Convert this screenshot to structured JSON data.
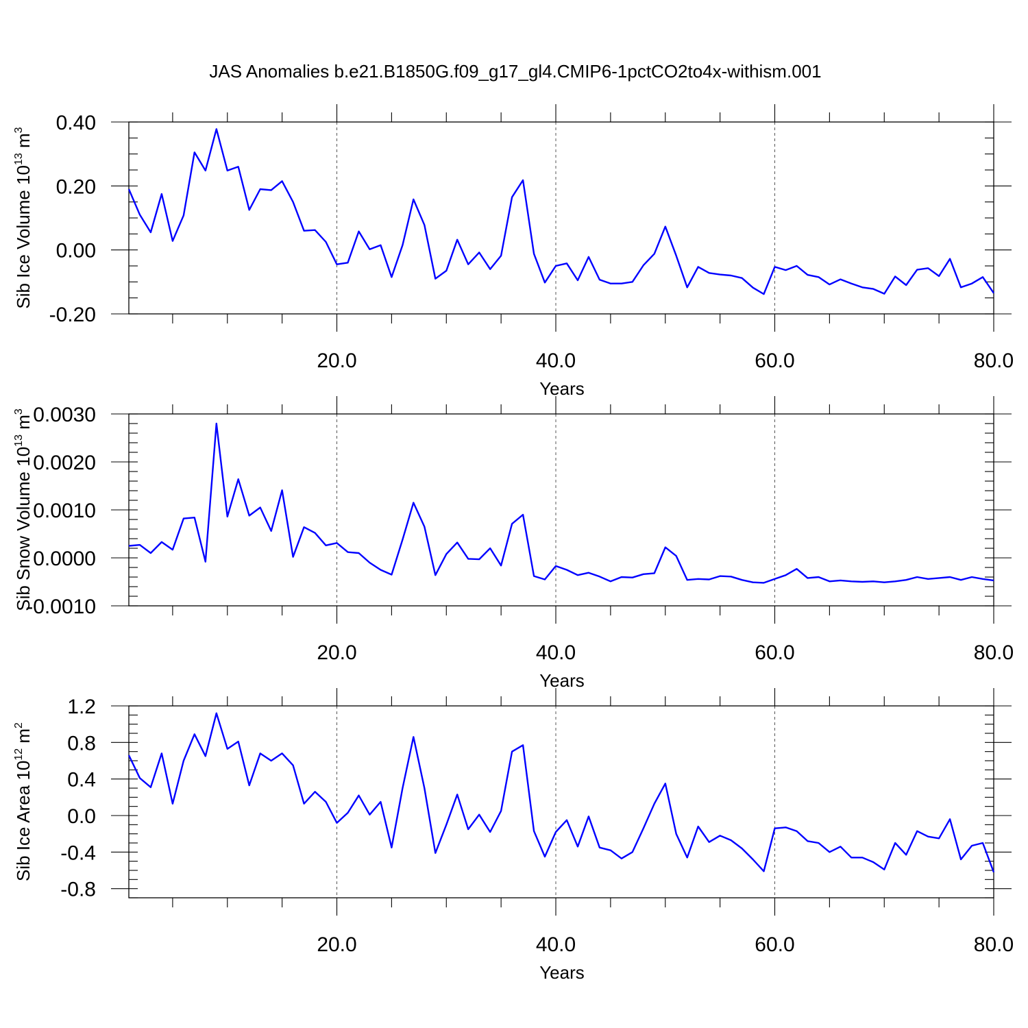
{
  "title": "JAS Anomalies b.e21.B1850G.f09_g17_gl4.CMIP6-1pctCO2to4x-withism.001",
  "colors": {
    "series": "#0000ff",
    "grid": "#555555"
  },
  "chart_data": [
    {
      "type": "line",
      "title": "JAS Anomalies b.e21.B1850G.f09_g17_gl4.CMIP6-1pctCO2to4x-withism.001",
      "xlabel": "Years",
      "ylabel": {
        "text": "Sib Ice Volume 10",
        "sup": "13",
        "unit": " m",
        "unit_sup": "3"
      },
      "xlim": [
        1,
        80
      ],
      "ylim": [
        -0.2,
        0.4
      ],
      "x_ticks": [
        20,
        40,
        60,
        80
      ],
      "x_tick_labels": [
        "20.0",
        "40.0",
        "60.0",
        "80.0"
      ],
      "y_ticks": [
        -0.2,
        0.0,
        0.2,
        0.4
      ],
      "y_tick_labels": [
        "-0.20",
        "0.00",
        "0.20",
        "0.40"
      ],
      "y_minor_step": 0.05,
      "grid": "x dashed at major ticks",
      "series": [
        {
          "color": "#0000ff",
          "x_start": 1,
          "values": [
            0.19,
            0.11,
            0.055,
            0.175,
            0.028,
            0.108,
            0.305,
            0.248,
            0.378,
            0.248,
            0.26,
            0.125,
            0.19,
            0.187,
            0.215,
            0.15,
            0.06,
            0.062,
            0.025,
            -0.045,
            -0.04,
            0.058,
            0.002,
            0.015,
            -0.085,
            0.015,
            0.158,
            0.078,
            -0.09,
            -0.065,
            0.032,
            -0.045,
            -0.008,
            -0.06,
            -0.018,
            0.165,
            0.218,
            -0.012,
            -0.102,
            -0.05,
            -0.042,
            -0.095,
            -0.022,
            -0.093,
            -0.105,
            -0.105,
            -0.1,
            -0.048,
            -0.012,
            0.073,
            -0.018,
            -0.117,
            -0.053,
            -0.072,
            -0.077,
            -0.08,
            -0.088,
            -0.118,
            -0.138,
            -0.053,
            -0.063,
            -0.05,
            -0.078,
            -0.085,
            -0.108,
            -0.092,
            -0.105,
            -0.117,
            -0.122,
            -0.137,
            -0.083,
            -0.11,
            -0.062,
            -0.057,
            -0.082,
            -0.028,
            -0.117,
            -0.105,
            -0.085,
            -0.135
          ]
        }
      ]
    },
    {
      "type": "line",
      "xlabel": "Years",
      "ylabel": {
        "text": "Sib Snow Volume 10",
        "sup": "13",
        "unit": " m",
        "unit_sup": "3"
      },
      "xlim": [
        1,
        80
      ],
      "ylim": [
        -0.001,
        0.003
      ],
      "x_ticks": [
        20,
        40,
        60,
        80
      ],
      "x_tick_labels": [
        "20.0",
        "40.0",
        "60.0",
        "80.0"
      ],
      "y_ticks": [
        -0.001,
        0.0,
        0.001,
        0.002,
        0.003
      ],
      "y_tick_labels": [
        "-0.0010",
        "0.0000",
        "0.0010",
        "0.0020",
        "0.0030"
      ],
      "y_minor_step": 0.0002,
      "grid": "x dashed at major ticks",
      "series": [
        {
          "color": "#0000ff",
          "x_start": 1,
          "values": [
            0.00025,
            0.00027,
            0.0001,
            0.00033,
            0.00017,
            0.00082,
            0.00084,
            -8e-05,
            0.0028,
            0.00086,
            0.00164,
            0.00088,
            0.00105,
            0.00056,
            0.00141,
            2e-05,
            0.00064,
            0.00052,
            0.00026,
            0.00031,
            0.00012,
            0.0001,
            -0.0001,
            -0.00025,
            -0.00035,
            0.00038,
            0.00115,
            0.00065,
            -0.00036,
            8e-05,
            0.00032,
            -2e-05,
            -3e-05,
            0.0002,
            -0.00016,
            0.00071,
            0.0009,
            -0.00038,
            -0.00045,
            -0.00017,
            -0.00025,
            -0.00036,
            -0.00031,
            -0.00039,
            -0.00049,
            -0.0004,
            -0.00041,
            -0.00034,
            -0.00032,
            0.00022,
            4e-05,
            -0.00046,
            -0.00044,
            -0.00045,
            -0.00038,
            -0.00039,
            -0.00046,
            -0.00051,
            -0.00052,
            -0.00044,
            -0.00036,
            -0.00023,
            -0.00042,
            -0.0004,
            -0.00049,
            -0.00047,
            -0.00049,
            -0.0005,
            -0.00049,
            -0.00051,
            -0.00049,
            -0.00046,
            -0.0004,
            -0.00044,
            -0.00042,
            -0.0004,
            -0.00046,
            -0.0004,
            -0.00044,
            -0.00047
          ]
        }
      ]
    },
    {
      "type": "line",
      "xlabel": "Years",
      "ylabel": {
        "text": "Sib Ice Area 10",
        "sup": "12",
        "unit": " m",
        "unit_sup": "2"
      },
      "xlim": [
        1,
        80
      ],
      "ylim": [
        -0.9,
        1.2
      ],
      "x_ticks": [
        20,
        40,
        60,
        80
      ],
      "x_tick_labels": [
        "20.0",
        "40.0",
        "60.0",
        "80.0"
      ],
      "y_ticks": [
        -0.8,
        -0.4,
        0.0,
        0.4,
        0.8,
        1.2
      ],
      "y_tick_labels": [
        "-0.8",
        "-0.4",
        "0.0",
        "0.4",
        "0.8",
        "1.2"
      ],
      "y_minor_step": 0.1,
      "grid": "x dashed at major ticks",
      "series": [
        {
          "color": "#0000ff",
          "x_start": 1,
          "values": [
            0.66,
            0.41,
            0.31,
            0.68,
            0.13,
            0.6,
            0.89,
            0.65,
            1.12,
            0.73,
            0.81,
            0.33,
            0.68,
            0.6,
            0.68,
            0.55,
            0.13,
            0.26,
            0.15,
            -0.08,
            0.03,
            0.22,
            0.01,
            0.15,
            -0.35,
            0.3,
            0.86,
            0.3,
            -0.41,
            -0.1,
            0.23,
            -0.15,
            0.01,
            -0.18,
            0.05,
            0.7,
            0.77,
            -0.17,
            -0.45,
            -0.18,
            -0.05,
            -0.34,
            -0.01,
            -0.35,
            -0.38,
            -0.47,
            -0.4,
            -0.14,
            0.13,
            0.35,
            -0.2,
            -0.46,
            -0.12,
            -0.29,
            -0.22,
            -0.27,
            -0.36,
            -0.48,
            -0.61,
            -0.14,
            -0.13,
            -0.17,
            -0.28,
            -0.3,
            -0.4,
            -0.34,
            -0.46,
            -0.46,
            -0.51,
            -0.59,
            -0.3,
            -0.43,
            -0.17,
            -0.23,
            -0.25,
            -0.04,
            -0.48,
            -0.33,
            -0.3,
            -0.62
          ]
        }
      ]
    }
  ]
}
